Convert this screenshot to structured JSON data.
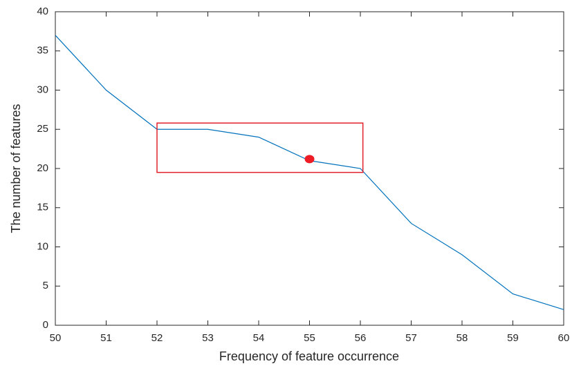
{
  "chart_data": {
    "type": "line",
    "xlabel": "Frequency of feature occurrence",
    "ylabel": "The number of features",
    "x": [
      50,
      51,
      52,
      53,
      54,
      55,
      56,
      57,
      58,
      59,
      60
    ],
    "values": [
      37,
      30,
      25,
      25,
      24,
      21,
      20,
      13,
      9,
      4,
      2
    ],
    "color": "#0072bd",
    "xlim": [
      50,
      60
    ],
    "xticks": [
      50,
      51,
      52,
      53,
      54,
      55,
      56,
      57,
      58,
      59,
      60
    ],
    "ylim": [
      0,
      40
    ],
    "yticks": [
      0,
      5,
      10,
      15,
      20,
      25,
      30,
      35,
      40
    ],
    "highlight": {
      "x": [
        52,
        56.05
      ],
      "y": [
        19.5,
        25.8
      ],
      "color": "#e0202a"
    },
    "point": {
      "x": 55,
      "y": 21.2,
      "color": "#ee1c25"
    }
  }
}
